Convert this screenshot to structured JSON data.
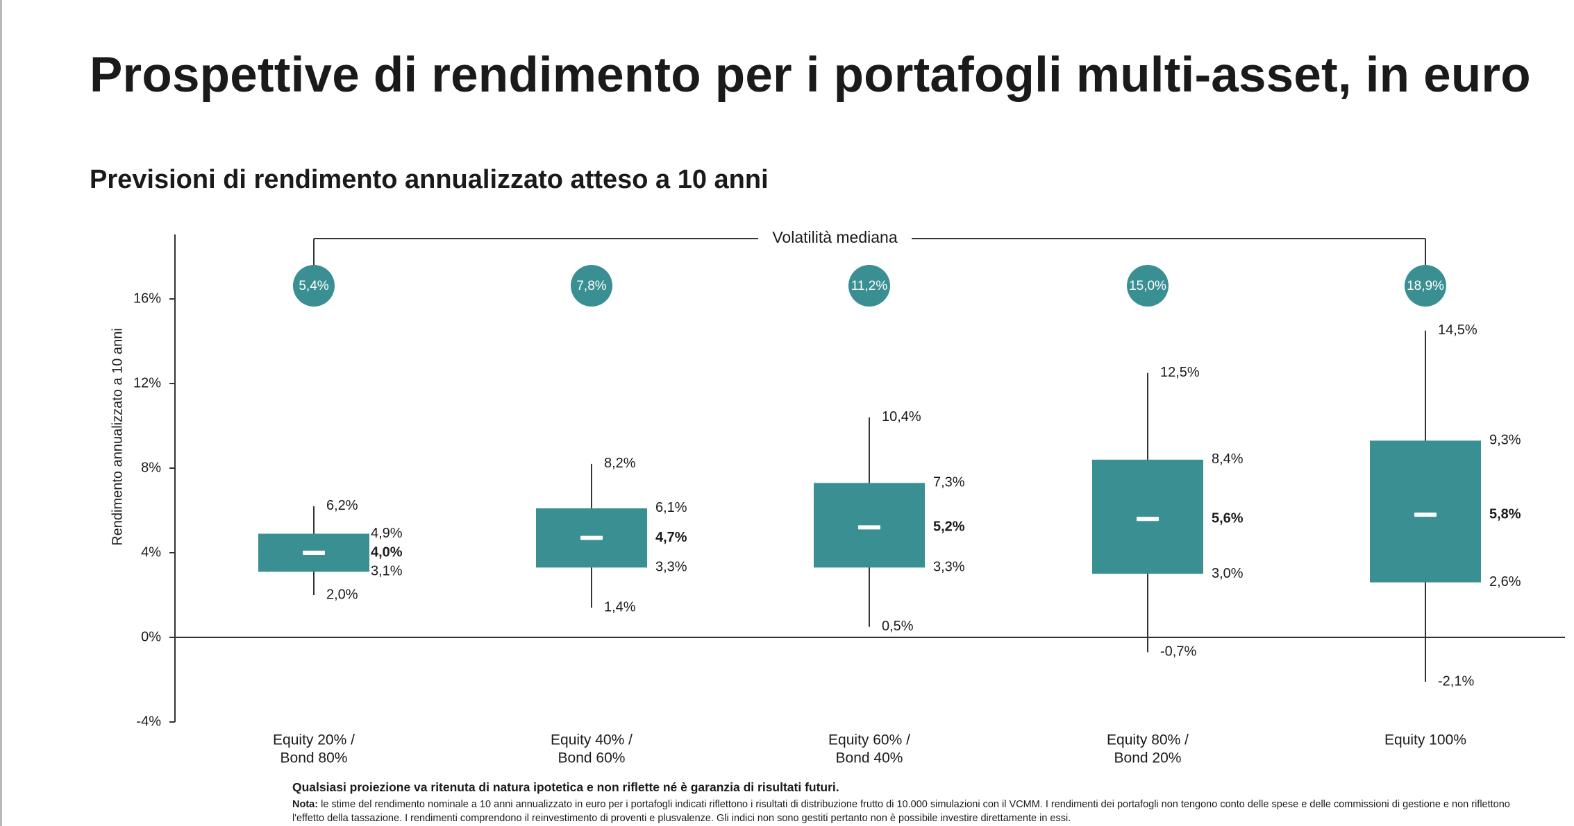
{
  "title": "Prospettive di rendimento per i portafogli multi-asset, in euro",
  "subtitle": "Previsioni di rendimento annualizzato atteso a 10 anni",
  "footer": {
    "disclaimer": "Qualsiasi proiezione va ritenuta di natura ipotetica e non riflette né è garanzia di risultati futuri.",
    "note_label": "Nota:",
    "note_text": "le stime del rendimento nominale a 10 anni annualizzato in euro per i portafogli indicati riflettono i risultati di distribuzione frutto di 10.000 simulazioni con il VCMM. I rendimenti dei portafogli non tengono conto delle spese e delle commissioni di gestione e non riflettono l'effetto della tassazione. I rendimenti comprendono il reinvestimento di proventi e plusvalenze. Gli indici non sono gestiti pertanto non è possibile investire direttamente in essi."
  },
  "colors": {
    "teal": "#3a8f93",
    "axis": "#333333",
    "text": "#1a1a1a"
  },
  "chart_data": {
    "type": "boxplot",
    "ylabel": "Rendimento annualizzato a 10 anni",
    "ylim": [
      -4,
      18
    ],
    "yticks": [
      -4,
      0,
      4,
      8,
      12,
      16
    ],
    "yticklabels": [
      "-4%",
      "0%",
      "4%",
      "8%",
      "12%",
      "16%"
    ],
    "bracket_label": "Volatilità mediana",
    "grid": false,
    "series": [
      {
        "category": "Equity 20% / Bond 80%",
        "category_lines": [
          "Equity 20% /",
          "Bond 80%"
        ],
        "volatility": "5,4%",
        "whisker_high": 6.2,
        "q3": 4.9,
        "median": 4.0,
        "q1": 3.1,
        "whisker_low": 2.0,
        "labels": {
          "whisker_high": "6,2%",
          "q3": "4,9%",
          "median": "4,0%",
          "q1": "3,1%",
          "whisker_low": "2,0%"
        }
      },
      {
        "category": "Equity 40% / Bond 60%",
        "category_lines": [
          "Equity 40% /",
          "Bond 60%"
        ],
        "volatility": "7,8%",
        "whisker_high": 8.2,
        "q3": 6.1,
        "median": 4.7,
        "q1": 3.3,
        "whisker_low": 1.4,
        "labels": {
          "whisker_high": "8,2%",
          "q3": "6,1%",
          "median": "4,7%",
          "q1": "3,3%",
          "whisker_low": "1,4%"
        }
      },
      {
        "category": "Equity 60% / Bond 40%",
        "category_lines": [
          "Equity 60% /",
          "Bond 40%"
        ],
        "volatility": "11,2%",
        "whisker_high": 10.4,
        "q3": 7.3,
        "median": 5.2,
        "q1": 3.3,
        "whisker_low": 0.5,
        "labels": {
          "whisker_high": "10,4%",
          "q3": "7,3%",
          "median": "5,2%",
          "q1": "3,3%",
          "whisker_low": "0,5%"
        }
      },
      {
        "category": "Equity 80% / Bond 20%",
        "category_lines": [
          "Equity 80% /",
          "Bond 20%"
        ],
        "volatility": "15,0%",
        "whisker_high": 12.5,
        "q3": 8.4,
        "median": 5.6,
        "q1": 3.0,
        "whisker_low": -0.7,
        "labels": {
          "whisker_high": "12,5%",
          "q3": "8,4%",
          "median": "5,6%",
          "q1": "3,0%",
          "whisker_low": "-0,7%"
        }
      },
      {
        "category": "Equity 100%",
        "category_lines": [
          "Equity 100%"
        ],
        "volatility": "18,9%",
        "whisker_high": 14.5,
        "q3": 9.3,
        "median": 5.8,
        "q1": 2.6,
        "whisker_low": -2.1,
        "labels": {
          "whisker_high": "14,5%",
          "q3": "9,3%",
          "median": "5,8%",
          "q1": "2,6%",
          "whisker_low": "-2,1%"
        }
      }
    ]
  }
}
